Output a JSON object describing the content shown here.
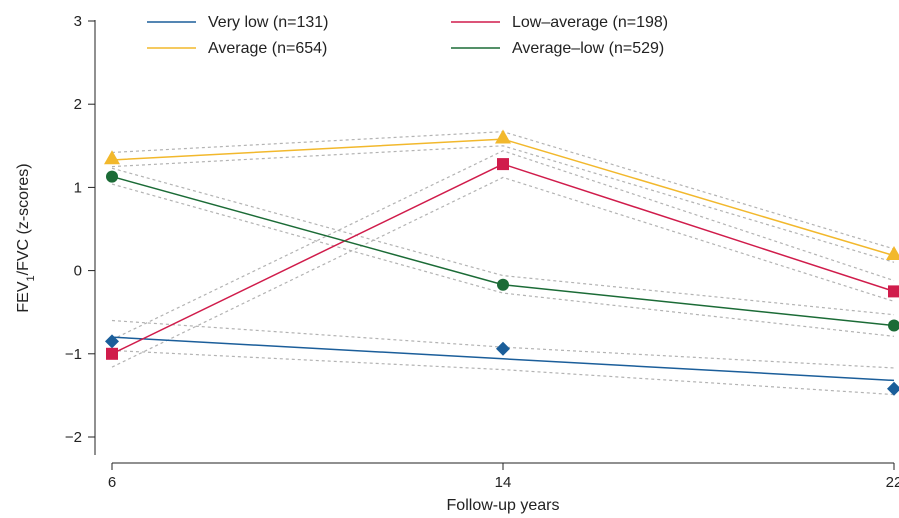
{
  "chart_data": {
    "type": "line",
    "xlabel": "Follow-up years",
    "ylabel": {
      "pre": "FEV",
      "sub": "1",
      "post": "/FVC (z-scores)"
    },
    "x": [
      6,
      14,
      22
    ],
    "x_ticks": [
      "6",
      "14",
      "22"
    ],
    "y_ticks": [
      "−2",
      "−1",
      "0",
      "1",
      "2",
      "3"
    ],
    "xlim": [
      6,
      22
    ],
    "ylim": [
      -2.5,
      3
    ],
    "grid": false,
    "legend_placement": "top",
    "series": [
      {
        "name": "Very low (n=131)",
        "color": "#1b5e9a",
        "marker": "diamond",
        "observed": [
          -0.85,
          -0.94,
          -1.42
        ],
        "fitted": [
          -0.8,
          -1.06,
          -1.32
        ],
        "ci_lower": [
          -0.96,
          -1.19,
          -1.49
        ],
        "ci_upper": [
          -0.6,
          -0.92,
          -1.17
        ]
      },
      {
        "name": "Low–average (n=198)",
        "color": "#d01c4b",
        "marker": "square",
        "observed": [
          -1.0,
          1.28,
          -0.25
        ],
        "fitted": [
          -1.0,
          1.28,
          -0.25
        ],
        "ci_lower": [
          -1.16,
          1.12,
          -0.37
        ],
        "ci_upper": [
          -0.83,
          1.44,
          -0.12
        ]
      },
      {
        "name": "Average (n=654)",
        "color": "#f2b82c",
        "marker": "triangle",
        "observed": [
          1.35,
          1.6,
          0.2
        ],
        "fitted": [
          1.33,
          1.58,
          0.18
        ],
        "ci_lower": [
          1.25,
          1.5,
          0.1
        ],
        "ci_upper": [
          1.42,
          1.67,
          0.26
        ]
      },
      {
        "name": "Average–low (n=529)",
        "color": "#1b6b36",
        "marker": "circle",
        "observed": [
          1.13,
          -0.17,
          -0.66
        ],
        "fitted": [
          1.13,
          -0.17,
          -0.66
        ],
        "ci_lower": [
          1.04,
          -0.27,
          -0.79
        ],
        "ci_upper": [
          1.23,
          -0.06,
          -0.53
        ]
      }
    ]
  }
}
